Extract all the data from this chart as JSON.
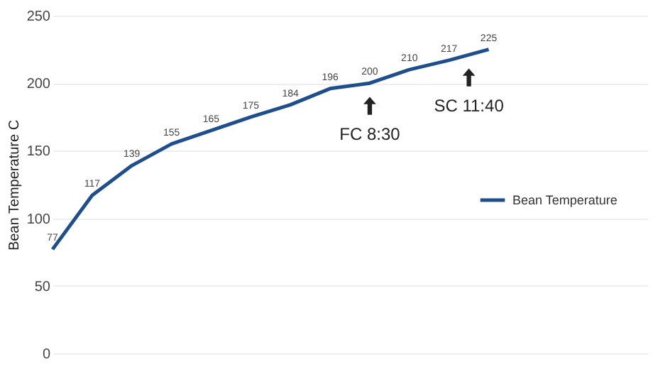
{
  "chart_data": {
    "type": "line",
    "ylabel": "Bean Temperature C",
    "categories": [
      null,
      null,
      null,
      null,
      null,
      null,
      null,
      null,
      null,
      null,
      null,
      null,
      null,
      null,
      null,
      null
    ],
    "series": [
      {
        "name": "Bean Temperature",
        "color": "#1f4e8c",
        "values": [
          77,
          117,
          139,
          155,
          165,
          175,
          184,
          196,
          200,
          210,
          217,
          225,
          null,
          null,
          null,
          null
        ]
      }
    ],
    "ylim": [
      0,
      250
    ],
    "yticks": [
      0,
      50,
      100,
      150,
      200,
      250
    ],
    "grid": "y",
    "legend": "right",
    "tick_labels": "y",
    "data_labels": true,
    "marker": "none",
    "line_style": "solid",
    "annotations": [
      {
        "text": "FC 8:30",
        "y": 200
      },
      {
        "text": "SC 11:40",
        "y": 221
      }
    ]
  }
}
